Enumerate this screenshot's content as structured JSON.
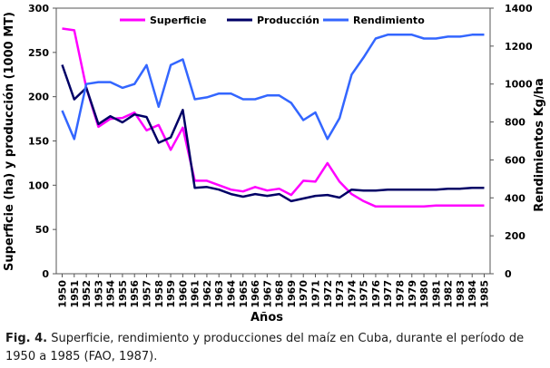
{
  "caption": {
    "label": "Fig. 4.",
    "text": "Superficie, rendimiento y producciones del maíz en Cuba, durante el período de 1950 a 1985 (FAO, 1987)."
  },
  "chart_data": {
    "type": "line",
    "xlabel": "Años",
    "ylabel_left": "Superficie (ha) y producción (1000 MT)",
    "ylabel_right": "Rendimientos Kg/ha",
    "y_left_range": [
      0,
      300
    ],
    "y_left_ticks": [
      0,
      50,
      100,
      150,
      200,
      250,
      300
    ],
    "y_right_range": [
      0,
      1400
    ],
    "y_right_ticks": [
      0,
      200,
      400,
      600,
      800,
      1000,
      1200,
      1400
    ],
    "grid": false,
    "legend_position": "top",
    "x": [
      "1950",
      "1951",
      "1952",
      "1953",
      "1954",
      "1955",
      "1956",
      "1957",
      "1958",
      "1959",
      "1960",
      "1961",
      "1962",
      "1963",
      "1964",
      "1965",
      "1966",
      "1967",
      "1968",
      "1969",
      "1970",
      "1971",
      "1972",
      "1973",
      "1974",
      "1975",
      "1976",
      "1977",
      "1978",
      "1979",
      "1980",
      "1981",
      "1982",
      "1983",
      "1984",
      "1985"
    ],
    "series": [
      {
        "name": "Superficie",
        "axis": "left",
        "color": "#ff00ff",
        "values": [
          277,
          275,
          210,
          166,
          175,
          176,
          182,
          162,
          168,
          140,
          165,
          105,
          105,
          100,
          95,
          93,
          98,
          94,
          96,
          89,
          105,
          104,
          125,
          104,
          90,
          82,
          76,
          76,
          76,
          76,
          76,
          77,
          77,
          77,
          77,
          77
        ]
      },
      {
        "name": "Producción",
        "axis": "left",
        "color": "#000066",
        "values": [
          236,
          197,
          210,
          169,
          178,
          171,
          180,
          177,
          148,
          154,
          185,
          97,
          98,
          95,
          90,
          87,
          90,
          88,
          90,
          82,
          85,
          88,
          89,
          86,
          95,
          94,
          94,
          95,
          95,
          95,
          95,
          95,
          96,
          96,
          97,
          97
        ]
      },
      {
        "name": "Rendimiento",
        "axis": "right",
        "color": "#3366ff",
        "values": [
          860,
          710,
          1000,
          1010,
          1010,
          980,
          1000,
          1100,
          880,
          1100,
          1130,
          920,
          930,
          950,
          950,
          920,
          920,
          940,
          940,
          900,
          810,
          850,
          710,
          820,
          1050,
          1140,
          1240,
          1260,
          1260,
          1260,
          1240,
          1240,
          1250,
          1250,
          1260,
          1260
        ]
      }
    ]
  }
}
